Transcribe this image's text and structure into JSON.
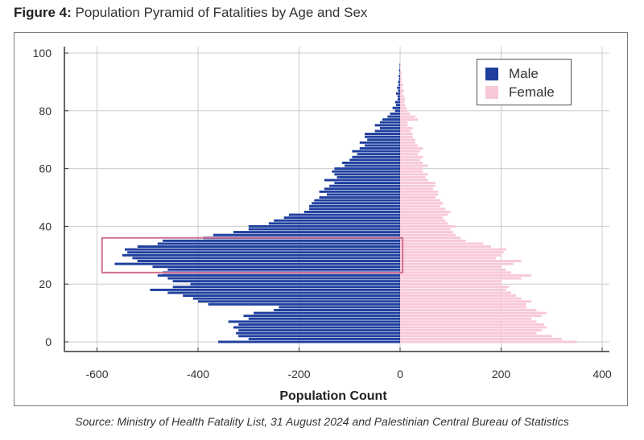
{
  "figure": {
    "label": "Figure 4:",
    "title": "Population Pyramid of Fatalities by Age and Sex",
    "source": "Source: Ministry of Health Fatality List, 31 August 2024 and Palestinian Central Bureau of Statistics"
  },
  "chart_data": {
    "type": "bar",
    "orientation": "horizontal",
    "title": "Population Pyramid of Fatalities by Age and Sex",
    "xlabel": "Population Count",
    "ylabel": "",
    "xlim": [
      -670,
      410
    ],
    "ylim": [
      -3,
      104
    ],
    "xticks": [
      -600,
      -400,
      -200,
      0,
      200,
      400
    ],
    "xtick_labels": [
      "-600",
      "-400",
      "-200",
      "0",
      "200",
      "400"
    ],
    "yticks": [
      0,
      20,
      40,
      60,
      80,
      100
    ],
    "ytick_labels": [
      "0",
      "20",
      "40",
      "60",
      "80",
      "100"
    ],
    "grid": true,
    "legend_position": "top-right",
    "categories_age": [
      0,
      1,
      2,
      3,
      4,
      5,
      6,
      7,
      8,
      9,
      10,
      11,
      12,
      13,
      14,
      15,
      16,
      17,
      18,
      19,
      20,
      21,
      22,
      23,
      24,
      25,
      26,
      27,
      28,
      29,
      30,
      31,
      32,
      33,
      34,
      35,
      36,
      37,
      38,
      39,
      40,
      41,
      42,
      43,
      44,
      45,
      46,
      47,
      48,
      49,
      50,
      51,
      52,
      53,
      54,
      55,
      56,
      57,
      58,
      59,
      60,
      61,
      62,
      63,
      64,
      65,
      66,
      67,
      68,
      69,
      70,
      71,
      72,
      73,
      74,
      75,
      76,
      77,
      78,
      79,
      80,
      81,
      82,
      83,
      84,
      85,
      86,
      87,
      88,
      89,
      90,
      91,
      92,
      93,
      94,
      95,
      96
    ],
    "series": [
      {
        "name": "Male",
        "color": "#1f3f9e",
        "values": [
          -360,
          -300,
          -320,
          -325,
          -320,
          -330,
          -320,
          -340,
          -300,
          -310,
          -290,
          -250,
          -240,
          -380,
          -400,
          -410,
          -430,
          -460,
          -495,
          -450,
          -415,
          -450,
          -460,
          -480,
          -470,
          -460,
          -490,
          -565,
          -520,
          -530,
          -550,
          -540,
          -545,
          -520,
          -480,
          -470,
          -390,
          -370,
          -330,
          -300,
          -300,
          -260,
          -250,
          -230,
          -220,
          -190,
          -180,
          -180,
          -175,
          -170,
          -160,
          -145,
          -160,
          -150,
          -140,
          -130,
          -150,
          -125,
          -130,
          -135,
          -130,
          -110,
          -115,
          -100,
          -95,
          -85,
          -95,
          -80,
          -70,
          -80,
          -65,
          -70,
          -70,
          -50,
          -40,
          -50,
          -40,
          -35,
          -25,
          -20,
          -10,
          -15,
          -8,
          -10,
          -5,
          -5,
          -8,
          -4,
          -6,
          -3,
          -4,
          -2,
          -3,
          -1,
          -2,
          -1,
          -1
        ]
      },
      {
        "name": "Female",
        "color": "#f8c8da",
        "values": [
          350,
          320,
          300,
          270,
          280,
          290,
          285,
          270,
          260,
          280,
          290,
          270,
          250,
          250,
          260,
          240,
          230,
          220,
          210,
          215,
          200,
          200,
          240,
          260,
          220,
          210,
          200,
          225,
          240,
          190,
          200,
          205,
          210,
          180,
          165,
          130,
          120,
          110,
          105,
          100,
          110,
          95,
          90,
          85,
          95,
          100,
          90,
          80,
          85,
          80,
          70,
          75,
          75,
          65,
          70,
          70,
          55,
          50,
          55,
          45,
          45,
          55,
          45,
          40,
          45,
          35,
          40,
          45,
          35,
          30,
          30,
          25,
          25,
          20,
          25,
          15,
          15,
          35,
          30,
          20,
          15,
          12,
          10,
          8,
          10,
          8,
          5,
          8,
          4,
          6,
          3,
          4,
          2,
          3,
          2,
          1,
          2
        ]
      }
    ],
    "annotation": {
      "type": "highlight-rectangle",
      "x_range": [
        -590,
        5
      ],
      "y_range": [
        24,
        36
      ],
      "color": "#d0708f"
    }
  }
}
